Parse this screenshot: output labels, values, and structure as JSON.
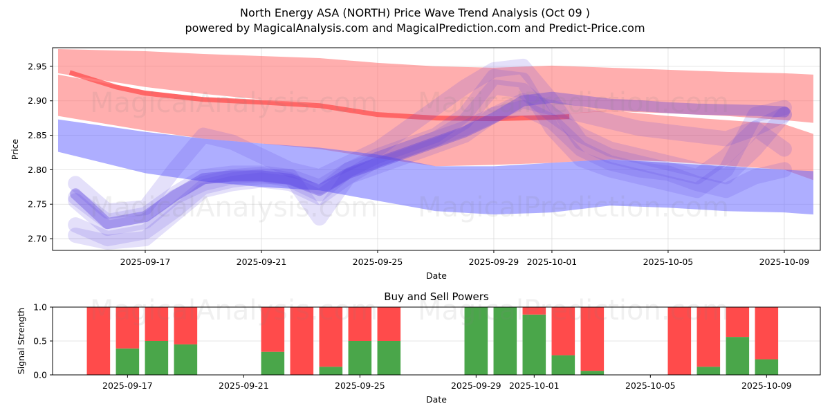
{
  "header": {
    "title": "North Energy ASA (NORTH) Price Wave Trend Analysis (Oct 09 )",
    "subtitle": "powered by MagicalAnalysis.com and MagicalPrediction.com and Predict-Price.com"
  },
  "watermarks": [
    "MagicalAnalysis.com",
    "MagicalPrediction.com"
  ],
  "colors": {
    "red_band": "#ff6b6b",
    "blue_band": "#6b6bff",
    "red_line": "#ff4d4d",
    "wave": "#5a3fe0",
    "buy": "#4aa64a",
    "sell": "#ff4b4b",
    "grid": "#dddddd"
  },
  "chart_data": [
    {
      "type": "area",
      "title": "",
      "xlabel": "Date",
      "ylabel": "Price",
      "ylim": [
        2.683,
        2.977
      ],
      "xlim_days_from": "2025-09-17",
      "xlim": [
        -3.19,
        23.24
      ],
      "grid": true,
      "x_ticks": [
        {
          "day": 0,
          "label": "2025-09-17"
        },
        {
          "day": 4,
          "label": "2025-09-21"
        },
        {
          "day": 8,
          "label": "2025-09-25"
        },
        {
          "day": 12,
          "label": "2025-09-29"
        },
        {
          "day": 14,
          "label": "2025-10-01"
        },
        {
          "day": 18,
          "label": "2025-10-05"
        },
        {
          "day": 22,
          "label": "2025-10-09"
        }
      ],
      "y_ticks": [
        {
          "value": 2.7,
          "label": "2.70"
        },
        {
          "value": 2.75,
          "label": "2.75"
        },
        {
          "value": 2.8,
          "label": "2.80"
        },
        {
          "value": 2.85,
          "label": "2.85"
        },
        {
          "value": 2.9,
          "label": "2.90"
        },
        {
          "value": 2.95,
          "label": "2.95"
        }
      ],
      "band_days": [
        -3.0,
        0,
        2,
        4,
        6,
        8,
        10,
        12,
        14,
        16,
        18,
        20,
        22,
        23.0
      ],
      "bands": [
        {
          "name": "red-upper-band",
          "color": "red",
          "upper": [
            2.975,
            2.972,
            2.968,
            2.965,
            2.962,
            2.955,
            2.95,
            2.948,
            2.951,
            2.948,
            2.945,
            2.942,
            2.94,
            2.938
          ],
          "lower": [
            2.94,
            2.92,
            2.91,
            2.902,
            2.895,
            2.885,
            2.876,
            2.874,
            2.88,
            2.885,
            2.882,
            2.878,
            2.872,
            2.868
          ]
        },
        {
          "name": "red-lower-band",
          "color": "red",
          "upper": [
            2.938,
            2.915,
            2.905,
            2.9,
            2.895,
            2.885,
            2.876,
            2.875,
            2.88,
            2.886,
            2.878,
            2.872,
            2.866,
            2.852
          ],
          "lower": [
            2.878,
            2.857,
            2.845,
            2.838,
            2.83,
            2.817,
            2.805,
            2.807,
            2.81,
            2.815,
            2.812,
            2.806,
            2.8,
            2.785
          ]
        },
        {
          "name": "blue-band",
          "color": "blue",
          "upper": [
            2.873,
            2.855,
            2.845,
            2.838,
            2.832,
            2.822,
            2.805,
            2.805,
            2.81,
            2.815,
            2.81,
            2.805,
            2.8,
            2.798
          ],
          "lower": [
            2.826,
            2.795,
            2.783,
            2.775,
            2.77,
            2.755,
            2.74,
            2.735,
            2.738,
            2.748,
            2.745,
            2.74,
            2.738,
            2.735
          ]
        }
      ],
      "trend_line": {
        "name": "red-trend-line",
        "days": [
          -2.6,
          -1,
          0,
          2,
          4,
          6,
          8,
          10,
          12,
          14,
          14.6
        ],
        "values": [
          2.941,
          2.92,
          2.911,
          2.902,
          2.898,
          2.893,
          2.88,
          2.875,
          2.874,
          2.876,
          2.877
        ]
      },
      "wave_days": [
        -2.4,
        -1.3,
        0,
        1,
        2,
        3,
        4,
        5,
        6,
        7,
        8,
        9,
        10,
        11,
        12,
        13,
        14,
        15,
        16,
        17,
        18,
        19,
        20,
        21,
        22
      ],
      "waves": [
        {
          "name": "wave-main",
          "values": [
            2.765,
            2.722,
            2.732,
            2.762,
            2.787,
            2.791,
            2.791,
            2.786,
            2.77,
            2.795,
            2.81,
            2.825,
            2.84,
            2.855,
            2.875,
            2.9,
            2.905,
            2.9,
            2.895,
            2.893,
            2.89,
            2.888,
            2.887,
            2.886,
            2.884
          ]
        },
        {
          "name": "wave-2",
          "values": [
            2.755,
            2.715,
            2.725,
            2.76,
            2.78,
            2.79,
            2.793,
            2.785,
            2.765,
            2.8,
            2.82,
            2.835,
            2.85,
            2.88,
            2.935,
            2.93,
            2.86,
            2.815,
            2.8,
            2.79,
            2.78,
            2.77,
            2.8,
            2.88,
            2.89
          ]
        },
        {
          "name": "wave-3",
          "values": [
            2.78,
            2.74,
            2.745,
            2.8,
            2.85,
            2.84,
            2.82,
            2.8,
            2.79,
            2.81,
            2.83,
            2.86,
            2.89,
            2.92,
            2.945,
            2.95,
            2.9,
            2.84,
            2.82,
            2.81,
            2.8,
            2.79,
            2.82,
            2.86,
            2.83
          ]
        },
        {
          "name": "wave-4",
          "values": [
            2.72,
            2.7,
            2.71,
            2.74,
            2.775,
            2.785,
            2.79,
            2.79,
            2.73,
            2.79,
            2.815,
            2.83,
            2.845,
            2.87,
            2.92,
            2.915,
            2.88,
            2.85,
            2.83,
            2.82,
            2.81,
            2.8,
            2.79,
            2.83,
            2.88
          ]
        },
        {
          "name": "wave-5",
          "values": [
            2.705,
            2.695,
            2.7,
            2.735,
            2.77,
            2.78,
            2.785,
            2.78,
            2.76,
            2.79,
            2.805,
            2.82,
            2.835,
            2.85,
            2.88,
            2.89,
            2.87,
            2.83,
            2.81,
            2.8,
            2.795,
            2.78,
            2.77,
            2.79,
            2.8
          ]
        },
        {
          "name": "wave-6",
          "values": [
            2.76,
            2.725,
            2.735,
            2.765,
            2.79,
            2.795,
            2.795,
            2.79,
            2.775,
            2.8,
            2.815,
            2.83,
            2.845,
            2.86,
            2.88,
            2.9,
            2.89,
            2.88,
            2.87,
            2.86,
            2.855,
            2.85,
            2.845,
            2.86,
            2.88
          ]
        }
      ]
    },
    {
      "type": "bar",
      "title": "Buy and Sell Powers",
      "xlabel": "Date",
      "ylabel": "Signal Strength",
      "ylim": [
        0,
        1.0
      ],
      "grid": true,
      "xlim_days_from": "2025-09-17",
      "xlim": [
        -2.58,
        23.85
      ],
      "x_ticks": [
        {
          "day": 0,
          "label": "2025-09-17"
        },
        {
          "day": 4,
          "label": "2025-09-21"
        },
        {
          "day": 8,
          "label": "2025-09-25"
        },
        {
          "day": 12,
          "label": "2025-09-29"
        },
        {
          "day": 14,
          "label": "2025-10-01"
        },
        {
          "day": 18,
          "label": "2025-10-05"
        },
        {
          "day": 22,
          "label": "2025-10-09"
        }
      ],
      "y_ticks": [
        {
          "value": 0.0,
          "label": "0.0"
        },
        {
          "value": 0.5,
          "label": "0.5"
        },
        {
          "value": 1.0,
          "label": "1.0"
        }
      ],
      "categories": [
        "2025-09-16",
        "2025-09-17",
        "2025-09-18",
        "2025-09-19",
        "2025-09-22",
        "2025-09-23",
        "2025-09-24",
        "2025-09-25",
        "2025-09-26",
        "2025-09-29",
        "2025-09-30",
        "2025-10-01",
        "2025-10-02",
        "2025-10-03",
        "2025-10-06",
        "2025-10-07",
        "2025-10-08",
        "2025-10-09"
      ],
      "days": [
        -1,
        0,
        1,
        2,
        5,
        6,
        7,
        8,
        9,
        12,
        13,
        14,
        15,
        16,
        19,
        20,
        21,
        22
      ],
      "series": [
        {
          "name": "Buy",
          "color": "buy",
          "values": [
            0.0,
            0.39,
            0.5,
            0.45,
            0.34,
            0.0,
            0.12,
            0.5,
            0.5,
            1.0,
            1.0,
            0.89,
            0.29,
            0.06,
            0.0,
            0.12,
            0.56,
            0.23
          ]
        },
        {
          "name": "Sell",
          "color": "sell",
          "values": [
            1.0,
            0.61,
            0.5,
            0.55,
            0.66,
            1.0,
            0.88,
            0.5,
            0.5,
            0.0,
            0.0,
            0.11,
            0.71,
            0.94,
            1.0,
            0.88,
            0.44,
            0.77
          ]
        }
      ]
    }
  ]
}
